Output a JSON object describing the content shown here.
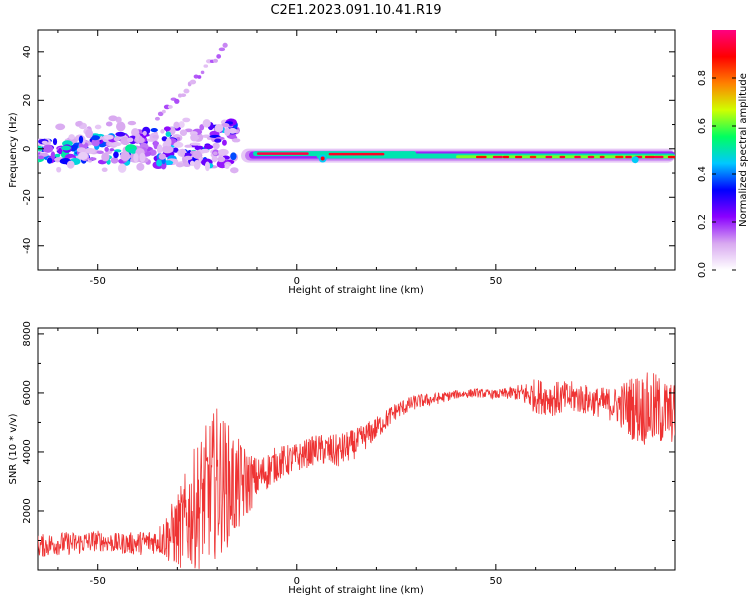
{
  "title": "C2E1.2023.091.10.41.R19",
  "chart_data": [
    {
      "type": "heatmap",
      "xlabel": "Height of straight line (km)",
      "ylabel": "Frequency (Hz)",
      "xlim": [
        -65,
        95
      ],
      "ylim": [
        -50,
        49
      ],
      "x_ticks": [
        -50,
        0,
        50
      ],
      "y_ticks": [
        -40,
        -20,
        0,
        20,
        40
      ],
      "x_tick_labels": [
        "-50",
        "0",
        "50"
      ],
      "y_tick_labels": [
        "-40",
        "-20",
        "0",
        "20",
        "40"
      ],
      "colorbar": {
        "label": "Normalized spectral amplitude",
        "range": [
          0,
          1
        ],
        "ticks": [
          0.0,
          0.2,
          0.4,
          0.6,
          0.8
        ],
        "tick_labels": [
          "0.0",
          "0.2",
          "0.4",
          "0.6",
          "0.8"
        ],
        "colors": [
          "#ffffff",
          "#d8a8f0",
          "#8a00ff",
          "#0000ff",
          "#00c8ff",
          "#00ff60",
          "#d0ff00",
          "#ff8000",
          "#ff0000",
          "#ff0080"
        ]
      },
      "features": [
        {
          "name": "steady-carrier-line",
          "x_range": [
            -12,
            95
          ],
          "frequency_hz": [
            -2,
            -4
          ],
          "peak_amplitude": 0.95
        },
        {
          "name": "low-altitude-scatter",
          "x_range": [
            -65,
            -15
          ],
          "frequency_hz": [
            -8,
            8
          ],
          "peak_amplitude": 0.5
        },
        {
          "name": "rising-streak",
          "x_range": [
            -35,
            -20
          ],
          "frequency_hz": [
            20,
            42
          ],
          "peak_amplitude": 0.2
        }
      ]
    },
    {
      "type": "line",
      "xlabel": "Height of straight line (km)",
      "ylabel": "SNR (10 * v/v)",
      "xlim": [
        -65,
        95
      ],
      "ylim": [
        0,
        8200
      ],
      "x_ticks": [
        -50,
        0,
        50
      ],
      "y_ticks": [
        2000,
        4000,
        6000,
        8000
      ],
      "x_tick_labels": [
        "-50",
        "0",
        "50"
      ],
      "y_tick_labels": [
        "2000",
        "4000",
        "6000",
        "8000"
      ],
      "color": "#ee3333",
      "x": [
        -65,
        -60,
        -55,
        -50,
        -45,
        -40,
        -35,
        -30,
        -25,
        -20,
        -15,
        -10,
        -5,
        0,
        5,
        10,
        15,
        20,
        25,
        30,
        35,
        40,
        45,
        50,
        55,
        60,
        65,
        70,
        75,
        80,
        85,
        90,
        95
      ],
      "y": [
        800,
        900,
        900,
        1000,
        900,
        900,
        1000,
        1300,
        2200,
        3000,
        2800,
        3100,
        3600,
        3800,
        4100,
        4000,
        4300,
        4800,
        5400,
        5700,
        5800,
        5950,
        6000,
        5950,
        6000,
        5900,
        5800,
        5850,
        5700,
        5600,
        5500,
        5400,
        5300
      ],
      "noise": [
        400,
        400,
        400,
        350,
        350,
        400,
        450,
        1300,
        2200,
        2600,
        1700,
        700,
        600,
        500,
        500,
        600,
        500,
        400,
        300,
        250,
        200,
        150,
        150,
        150,
        250,
        600,
        600,
        550,
        500,
        600,
        1200,
        1300,
        1000
      ]
    }
  ]
}
